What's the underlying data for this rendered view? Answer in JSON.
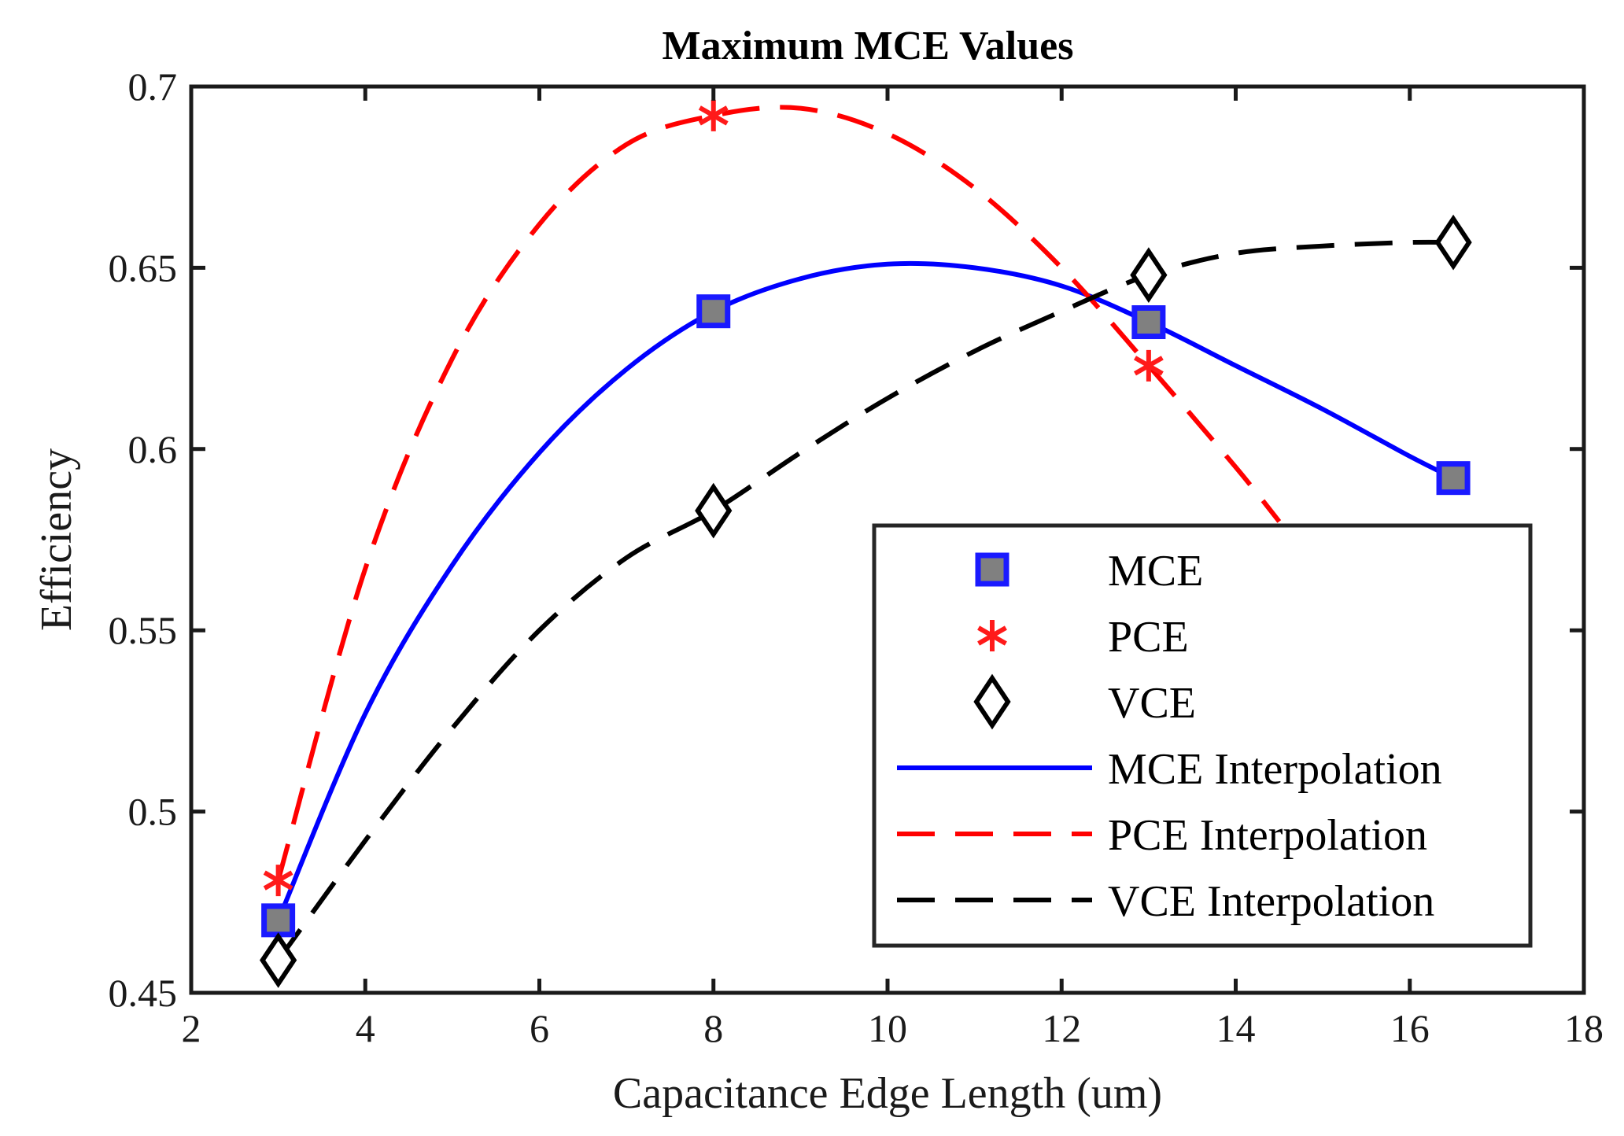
{
  "chart_data": {
    "type": "line",
    "title": "Maximum MCE Values",
    "xlabel": "Capacitance Edge Length (um)",
    "ylabel": "Efficiency",
    "xlim": [
      2,
      18
    ],
    "ylim": [
      0.45,
      0.7
    ],
    "xticks": [
      "2",
      "4",
      "6",
      "8",
      "10",
      "12",
      "14",
      "16",
      "18"
    ],
    "yticks": [
      "0.45",
      "0.5",
      "0.55",
      "0.6",
      "0.65",
      "0.7"
    ],
    "grid": false,
    "legend_placement": "bottom-right",
    "series": [
      {
        "name": "MCE",
        "kind": "markers",
        "marker": "square",
        "color": "#1a1aff",
        "fill": "#808080",
        "x": [
          3,
          8,
          13,
          16.5
        ],
        "y": [
          0.47,
          0.638,
          0.635,
          0.592
        ]
      },
      {
        "name": "PCE",
        "kind": "markers",
        "marker": "asterisk",
        "color": "#ff1a1a",
        "x": [
          3,
          8,
          13
        ],
        "y": [
          0.481,
          0.692,
          0.623
        ]
      },
      {
        "name": "VCE",
        "kind": "markers",
        "marker": "diamond",
        "color": "#000000",
        "x": [
          3,
          8,
          13,
          16.5
        ],
        "y": [
          0.459,
          0.583,
          0.648,
          0.657
        ]
      },
      {
        "name": "MCE Interpolation",
        "kind": "line",
        "style": "solid",
        "color": "#0000ff",
        "x": [
          3,
          4,
          5,
          6,
          7,
          8,
          9,
          10,
          11,
          12,
          13,
          14,
          15,
          16,
          16.5
        ],
        "y": [
          0.47,
          0.527,
          0.568,
          0.599,
          0.622,
          0.638,
          0.647,
          0.651,
          0.65,
          0.645,
          0.635,
          0.623,
          0.611,
          0.598,
          0.592
        ]
      },
      {
        "name": "PCE Interpolation",
        "kind": "line",
        "style": "dashed",
        "color": "#ff0000",
        "x": [
          3,
          4,
          5,
          6,
          7,
          8,
          9,
          10,
          11,
          12,
          13,
          14,
          14.5
        ],
        "y": [
          0.481,
          0.567,
          0.625,
          0.662,
          0.684,
          0.692,
          0.694,
          0.687,
          0.672,
          0.65,
          0.623,
          0.595,
          0.58
        ]
      },
      {
        "name": "VCE Interpolation",
        "kind": "line",
        "style": "dashed",
        "color": "#000000",
        "x": [
          3,
          4,
          5,
          6,
          7,
          8,
          9,
          10,
          11,
          12,
          13,
          14,
          15,
          16,
          16.5
        ],
        "y": [
          0.459,
          0.492,
          0.523,
          0.55,
          0.57,
          0.583,
          0.599,
          0.614,
          0.627,
          0.638,
          0.648,
          0.654,
          0.656,
          0.657,
          0.657
        ]
      }
    ]
  }
}
